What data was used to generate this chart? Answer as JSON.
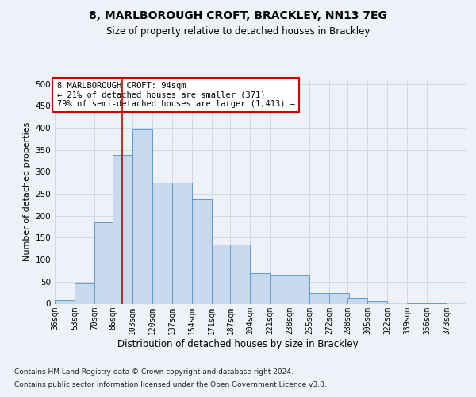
{
  "title": "8, MARLBOROUGH CROFT, BRACKLEY, NN13 7EG",
  "subtitle": "Size of property relative to detached houses in Brackley",
  "xlabel": "Distribution of detached houses by size in Brackley",
  "ylabel": "Number of detached properties",
  "footnote1": "Contains HM Land Registry data © Crown copyright and database right 2024.",
  "footnote2": "Contains public sector information licensed under the Open Government Licence v3.0.",
  "annotation_line1": "8 MARLBOROUGH CROFT: 94sqm",
  "annotation_line2": "← 21% of detached houses are smaller (371)",
  "annotation_line3": "79% of semi-detached houses are larger (1,413) →",
  "property_size": 94,
  "bar_values": [
    8,
    46,
    185,
    338,
    396,
    275,
    275,
    238,
    135,
    135,
    70,
    65,
    65,
    25,
    25,
    13,
    6,
    2,
    1,
    1,
    2
  ],
  "bin_edges": [
    36,
    53,
    70,
    86,
    103,
    120,
    137,
    154,
    171,
    187,
    204,
    221,
    238,
    255,
    272,
    288,
    305,
    322,
    339,
    356,
    373
  ],
  "bin_labels": [
    "36sqm",
    "53sqm",
    "70sqm",
    "86sqm",
    "103sqm",
    "120sqm",
    "137sqm",
    "154sqm",
    "171sqm",
    "187sqm",
    "204sqm",
    "221sqm",
    "238sqm",
    "255sqm",
    "272sqm",
    "288sqm",
    "305sqm",
    "322sqm",
    "339sqm",
    "356sqm",
    "373sqm"
  ],
  "bar_color": "#c8d9ee",
  "bar_edge_color": "#5b9bd5",
  "vline_color": "#cc0000",
  "vline_x": 94,
  "grid_color": "#d0d8e8",
  "background_color": "#eef2f8",
  "plot_background": "#eef2f8",
  "annotation_box_color": "#ffffff",
  "annotation_box_edge": "#cc0000",
  "ylim": [
    0,
    510
  ],
  "yticks": [
    0,
    50,
    100,
    150,
    200,
    250,
    300,
    350,
    400,
    450,
    500
  ]
}
